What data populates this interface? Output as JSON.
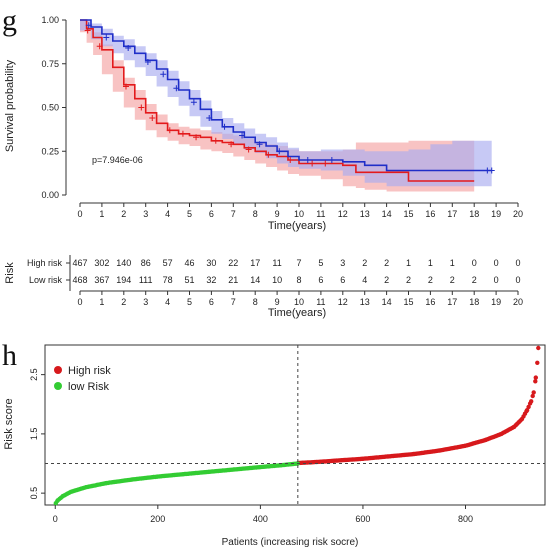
{
  "colors": {
    "high": "#e31a1c",
    "high_band": "#f4a3a3",
    "low": "#1f2ec8",
    "low_band": "#a9acf0",
    "scatter_high": "#d7191c",
    "scatter_low": "#33cc33",
    "axis": "#333333"
  },
  "chart_data": [
    {
      "type": "line",
      "panel_label": "g",
      "xlabel": "Time(years)",
      "ylabel": "Survival probability",
      "xlim": [
        0,
        20
      ],
      "ylim": [
        0,
        1
      ],
      "x_ticks": [
        "0",
        "1",
        "2",
        "3",
        "4",
        "5",
        "6",
        "7",
        "8",
        "9",
        "10",
        "11",
        "12",
        "13",
        "14",
        "15",
        "16",
        "17",
        "18",
        "19",
        "20"
      ],
      "y_ticks": [
        "0.00",
        "0.25",
        "0.50",
        "0.75",
        "1.00"
      ],
      "annotation": "p=7.946e-06",
      "grid": false,
      "series": [
        {
          "name": "High risk",
          "x": [
            0,
            0.3,
            0.6,
            1,
            1.5,
            2,
            2.5,
            3,
            3.5,
            4,
            4.5,
            5,
            5.5,
            6,
            6.5,
            7,
            7.5,
            8,
            8.5,
            9,
            9.5,
            10,
            11,
            12,
            12.6,
            13,
            14,
            15,
            17,
            18
          ],
          "y": [
            1.0,
            0.95,
            0.9,
            0.83,
            0.73,
            0.63,
            0.55,
            0.47,
            0.41,
            0.37,
            0.35,
            0.34,
            0.33,
            0.31,
            0.3,
            0.29,
            0.27,
            0.25,
            0.23,
            0.22,
            0.2,
            0.18,
            0.18,
            0.17,
            0.13,
            0.13,
            0.13,
            0.08,
            0.08,
            0.08
          ],
          "lower": [
            1.0,
            0.93,
            0.87,
            0.8,
            0.69,
            0.59,
            0.5,
            0.43,
            0.37,
            0.33,
            0.31,
            0.29,
            0.28,
            0.26,
            0.25,
            0.24,
            0.22,
            0.2,
            0.18,
            0.16,
            0.14,
            0.12,
            0.11,
            0.09,
            0.05,
            0.04,
            0.03,
            0.02,
            0.02,
            0.02
          ],
          "upper": [
            1.0,
            0.97,
            0.93,
            0.86,
            0.77,
            0.67,
            0.6,
            0.52,
            0.46,
            0.41,
            0.39,
            0.38,
            0.37,
            0.36,
            0.35,
            0.34,
            0.32,
            0.3,
            0.29,
            0.28,
            0.26,
            0.25,
            0.25,
            0.26,
            0.3,
            0.3,
            0.3,
            0.31,
            0.31,
            0.31
          ]
        },
        {
          "name": "Low risk",
          "x": [
            0,
            0.5,
            1,
            1.5,
            2,
            2.5,
            3,
            3.5,
            4,
            4.5,
            5,
            5.5,
            6,
            6.5,
            7,
            7.5,
            8,
            8.5,
            9,
            9.5,
            10,
            11,
            12,
            13,
            14,
            15,
            16,
            17,
            18,
            18.8
          ],
          "y": [
            1.0,
            0.96,
            0.92,
            0.88,
            0.85,
            0.81,
            0.77,
            0.72,
            0.66,
            0.6,
            0.55,
            0.49,
            0.43,
            0.39,
            0.36,
            0.33,
            0.3,
            0.28,
            0.25,
            0.22,
            0.2,
            0.2,
            0.19,
            0.17,
            0.14,
            0.14,
            0.14,
            0.14,
            0.14,
            0.14
          ],
          "lower": [
            1.0,
            0.94,
            0.89,
            0.85,
            0.81,
            0.77,
            0.73,
            0.68,
            0.62,
            0.56,
            0.51,
            0.45,
            0.39,
            0.35,
            0.32,
            0.29,
            0.26,
            0.24,
            0.21,
            0.18,
            0.16,
            0.15,
            0.14,
            0.11,
            0.07,
            0.05,
            0.05,
            0.05,
            0.05,
            0.05
          ],
          "upper": [
            1.0,
            0.98,
            0.95,
            0.91,
            0.89,
            0.85,
            0.81,
            0.77,
            0.71,
            0.65,
            0.6,
            0.54,
            0.48,
            0.44,
            0.41,
            0.38,
            0.35,
            0.33,
            0.3,
            0.27,
            0.25,
            0.26,
            0.26,
            0.25,
            0.25,
            0.26,
            0.29,
            0.31,
            0.31,
            0.31
          ]
        }
      ],
      "censor_marks": {
        "High risk": [
          {
            "x": 0.35,
            "y": 0.94
          },
          {
            "x": 0.9,
            "y": 0.85
          },
          {
            "x": 2.1,
            "y": 0.62
          },
          {
            "x": 2.8,
            "y": 0.5
          },
          {
            "x": 3.3,
            "y": 0.44
          },
          {
            "x": 4.1,
            "y": 0.37
          },
          {
            "x": 4.7,
            "y": 0.35
          },
          {
            "x": 5.3,
            "y": 0.33
          },
          {
            "x": 6.2,
            "y": 0.31
          },
          {
            "x": 6.9,
            "y": 0.29
          },
          {
            "x": 7.7,
            "y": 0.26
          },
          {
            "x": 8.6,
            "y": 0.23
          },
          {
            "x": 9.6,
            "y": 0.2
          },
          {
            "x": 10.6,
            "y": 0.18
          },
          {
            "x": 11.2,
            "y": 0.18
          }
        ],
        "Low risk": [
          {
            "x": 0.4,
            "y": 0.97
          },
          {
            "x": 1.2,
            "y": 0.9
          },
          {
            "x": 2.2,
            "y": 0.84
          },
          {
            "x": 3.1,
            "y": 0.76
          },
          {
            "x": 3.8,
            "y": 0.69
          },
          {
            "x": 4.4,
            "y": 0.61
          },
          {
            "x": 5.2,
            "y": 0.53
          },
          {
            "x": 5.9,
            "y": 0.44
          },
          {
            "x": 6.6,
            "y": 0.39
          },
          {
            "x": 7.4,
            "y": 0.34
          },
          {
            "x": 8.2,
            "y": 0.29
          },
          {
            "x": 9.1,
            "y": 0.25
          },
          {
            "x": 10.4,
            "y": 0.2
          },
          {
            "x": 11.5,
            "y": 0.2
          },
          {
            "x": 18.6,
            "y": 0.14
          },
          {
            "x": 18.8,
            "y": 0.14
          }
        ]
      }
    },
    {
      "type": "table",
      "title": "Risk",
      "xlabel": "Time(years)",
      "x_ticks": [
        "0",
        "1",
        "2",
        "3",
        "4",
        "5",
        "6",
        "7",
        "8",
        "9",
        "10",
        "11",
        "12",
        "13",
        "14",
        "15",
        "16",
        "17",
        "18",
        "19",
        "20"
      ],
      "rows": [
        {
          "name": "High risk",
          "values": [
            "467",
            "302",
            "140",
            "86",
            "57",
            "46",
            "30",
            "22",
            "17",
            "11",
            "7",
            "5",
            "3",
            "2",
            "2",
            "1",
            "1",
            "1",
            "0",
            "0",
            "0"
          ]
        },
        {
          "name": "Low risk",
          "values": [
            "468",
            "367",
            "194",
            "111",
            "78",
            "51",
            "32",
            "21",
            "14",
            "10",
            "8",
            "6",
            "6",
            "4",
            "2",
            "2",
            "2",
            "2",
            "2",
            "0",
            "0"
          ]
        }
      ]
    },
    {
      "type": "scatter",
      "panel_label": "h",
      "xlabel": "Patients (increasing risk socre)",
      "ylabel": "Risk score",
      "xlim": [
        -20,
        955
      ],
      "ylim": [
        0.3,
        3.0
      ],
      "x_ticks": [
        "0",
        "200",
        "400",
        "600",
        "800"
      ],
      "y_ticks": [
        "0.5",
        "1.5",
        "2.5"
      ],
      "cutoff": {
        "x": 473,
        "y": 1.0
      },
      "legend_position": "top-left",
      "series": [
        {
          "name": "High risk",
          "x": [
            474,
            500,
            550,
            600,
            650,
            700,
            750,
            800,
            840,
            870,
            895,
            910,
            920,
            928,
            933,
            937,
            940,
            942
          ],
          "y": [
            1.01,
            1.02,
            1.05,
            1.08,
            1.12,
            1.16,
            1.22,
            1.3,
            1.4,
            1.5,
            1.62,
            1.75,
            1.9,
            2.05,
            2.2,
            2.45,
            2.7,
            2.95
          ]
        },
        {
          "name": "low Risk",
          "x": [
            1,
            5,
            15,
            30,
            60,
            100,
            150,
            200,
            250,
            300,
            350,
            400,
            440,
            473
          ],
          "y": [
            0.33,
            0.38,
            0.45,
            0.52,
            0.6,
            0.67,
            0.73,
            0.78,
            0.82,
            0.86,
            0.9,
            0.94,
            0.97,
            1.0
          ]
        }
      ]
    }
  ]
}
